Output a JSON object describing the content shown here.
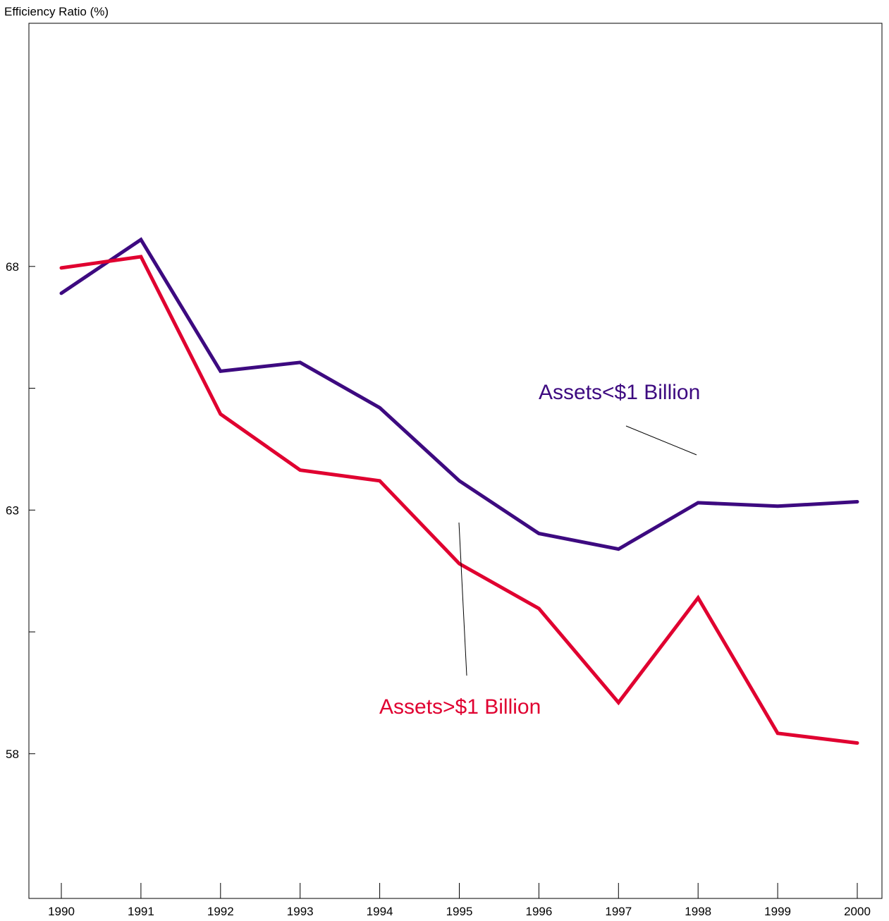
{
  "chart_data": {
    "type": "line",
    "title": "",
    "ylabel": "Efficiency Ratio (%)",
    "xlabel": "",
    "x": [
      "1990",
      "1991",
      "1992",
      "1993",
      "1994",
      "1995",
      "1996",
      "1997",
      "1998",
      "1999",
      "2000"
    ],
    "series": [
      {
        "name": "Assets<$1 Billion",
        "color": "#3d0a80",
        "values": [
          67.45,
          68.55,
          65.85,
          66.03,
          65.1,
          63.6,
          62.52,
          62.2,
          63.15,
          63.08,
          63.17
        ]
      },
      {
        "name": "Assets>$1 Billion",
        "color": "#e00030",
        "values": [
          67.97,
          68.2,
          64.97,
          63.82,
          63.6,
          61.9,
          60.98,
          59.05,
          61.2,
          58.42,
          58.22
        ]
      }
    ],
    "y_ticks": [
      58,
      63,
      68
    ],
    "y_minor_ticks": [
      60.5,
      65.5
    ],
    "ylim": [
      55.03,
      72.99
    ],
    "grid": false,
    "legend": "inline-labels"
  }
}
